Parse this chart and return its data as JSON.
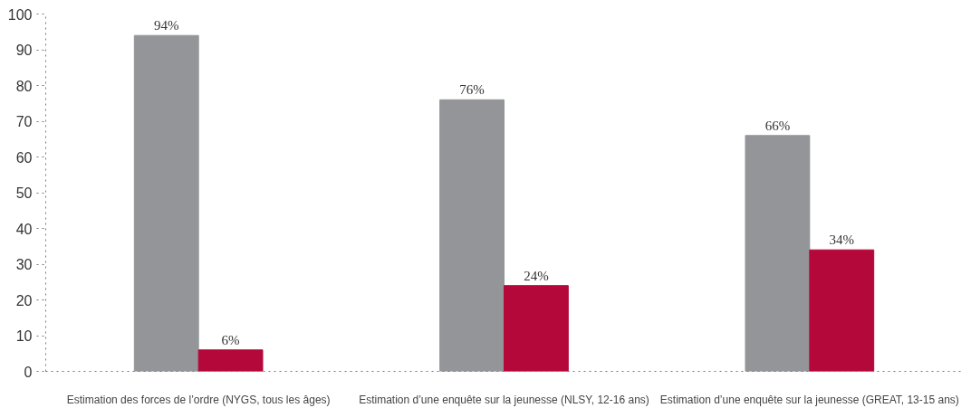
{
  "chart_data": {
    "type": "bar",
    "categories": [
      "Estimation des forces de l’ordre (NYGS, tous les âges)",
      "Estimation d’une enquête sur la jeunesse (NLSY, 12-16 ans)",
      "Estimation d’une enquête sur la jeunesse (GREAT, 13-15 ans)"
    ],
    "series": [
      {
        "color": "#939598",
        "values": [
          94,
          76,
          66
        ],
        "value_labels": [
          "94%",
          "76%",
          "66%"
        ]
      },
      {
        "color": "#b5083a",
        "values": [
          6,
          24,
          34
        ],
        "value_labels": [
          "6%",
          "24%",
          "34%"
        ]
      }
    ],
    "ylim": [
      0,
      100
    ],
    "yticks": [
      0,
      10,
      20,
      30,
      40,
      50,
      60,
      70,
      80,
      90,
      100
    ],
    "grid": false
  }
}
